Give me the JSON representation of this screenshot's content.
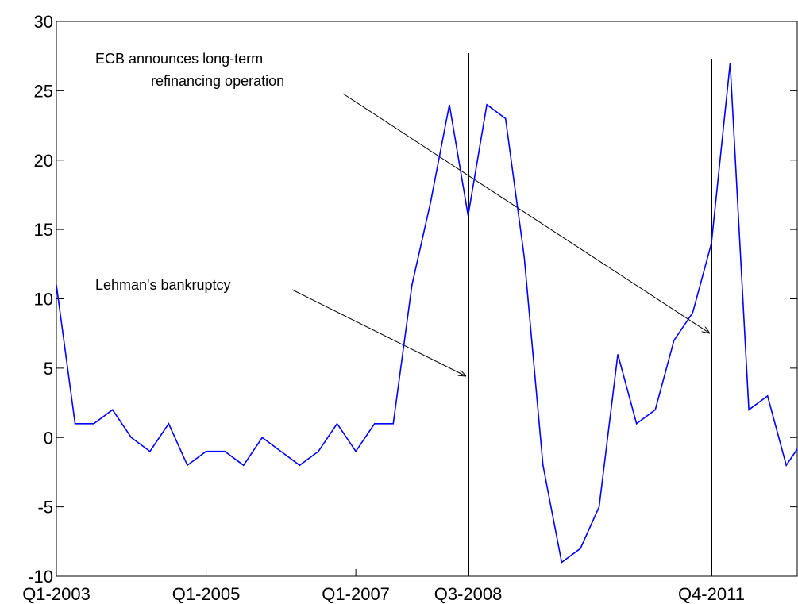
{
  "chart_data": {
    "type": "line",
    "categories": [
      "Q1-2003",
      null,
      null,
      null,
      null,
      null,
      null,
      null,
      "Q1-2005",
      null,
      null,
      null,
      null,
      null,
      null,
      null,
      "Q1-2007",
      null,
      null,
      null,
      null,
      null,
      "Q3-2008",
      null,
      null,
      null,
      null,
      null,
      null,
      null,
      null,
      null,
      null,
      null,
      null,
      "Q4-2011",
      null,
      null,
      null,
      null,
      null
    ],
    "series": [
      {
        "color": "#0000ff",
        "values": [
          11,
          1,
          1,
          2,
          0,
          -1,
          1,
          -2,
          -1,
          -1,
          -2,
          0,
          -1,
          -2,
          -1,
          1,
          -1,
          1,
          1,
          11,
          17,
          24,
          16,
          24,
          23,
          13,
          -2,
          -9,
          -8,
          -5,
          6,
          1,
          2,
          7,
          9,
          14,
          27,
          2,
          3,
          -2,
          0
        ]
      }
    ],
    "ylim": [
      -10,
      30
    ],
    "yticks": [
      -10,
      -5,
      0,
      5,
      10,
      15,
      20,
      25,
      30
    ],
    "annotations": [
      {
        "text": [
          "ECB announces long-term",
          "refinancing operation"
        ]
      },
      {
        "text": [
          "Lehman's bankruptcy"
        ]
      }
    ]
  }
}
